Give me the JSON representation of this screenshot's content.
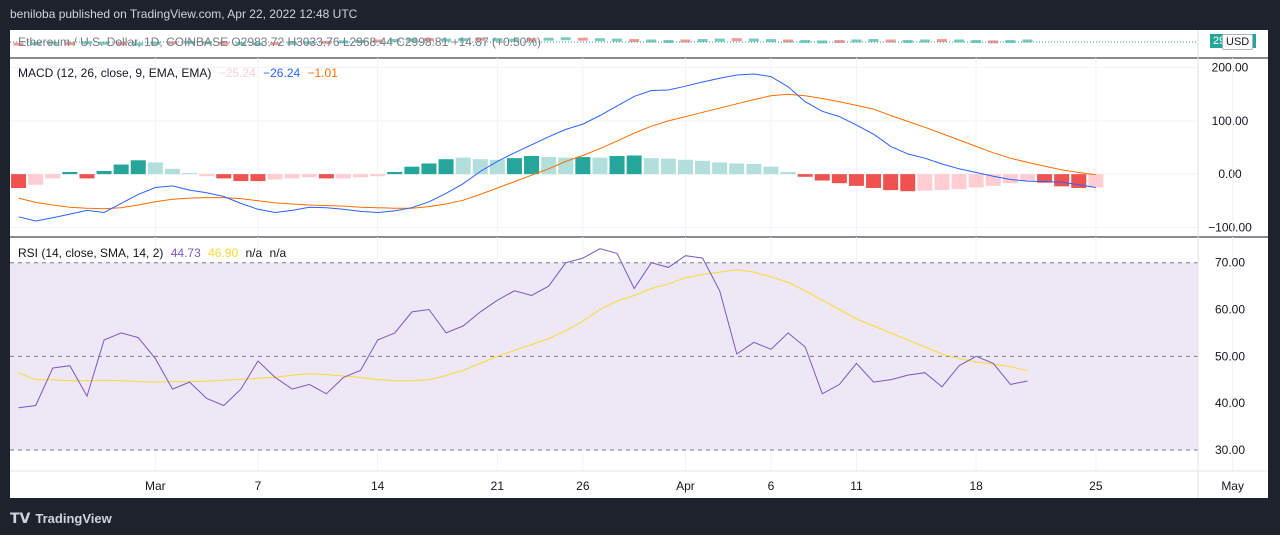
{
  "header": {
    "published": "beniloba published on TradingView.com, Apr 22, 2022 12:48 UTC"
  },
  "footer": {
    "brand": "TradingView"
  },
  "price_pane": {
    "legend": "Ethereum / U.S. Dollar, 1D, COINBASE O2983.72 H3033.76 L2968.44 C2998.81 +14.87 (+0.50%)",
    "price_badge": "2998.81",
    "currency": "USD"
  },
  "colors": {
    "up": "#26a69a",
    "down": "#ef5350",
    "up_light": "#b2dfdb",
    "down_light": "#ffcdd2",
    "macd": "#2962ff",
    "signal": "#ff6d00",
    "rsi": "#7e57c2",
    "rsi_ma": "#fdd835",
    "rsi_band": "#ede7f6"
  },
  "chart_data": [
    {
      "type": "bar",
      "title": "MACD",
      "legend": {
        "label": "MACD (12, 26, close, 9, EMA, EMA)",
        "histogram": "−25.24",
        "macd": "−26.24",
        "signal": "−1.01"
      },
      "y_ticks": [
        "200.00",
        "100.00",
        "0.00",
        "−100.00"
      ],
      "y_tick_values": [
        200,
        100,
        0,
        -100
      ],
      "ylim": [
        -118,
        218
      ],
      "x_start": "2022-02-21",
      "histogram": [
        -26,
        -20,
        -8,
        4,
        -8,
        6,
        18,
        26,
        22,
        10,
        2,
        -4,
        -8,
        -13,
        -13,
        -10,
        -8,
        -6,
        -8,
        -8,
        -6,
        -4,
        4,
        14,
        20,
        28,
        31,
        28,
        27,
        30,
        34,
        32,
        31,
        32,
        31,
        34,
        35,
        30,
        29,
        27,
        25,
        22,
        20,
        19,
        14,
        4,
        -5,
        -12,
        -17,
        -22,
        -26,
        -30,
        -32,
        -31,
        -30,
        -28,
        -25,
        -22,
        -17,
        -12,
        -16,
        -23,
        -26,
        -25
      ],
      "histogram_colors": [
        "down",
        "down_light",
        "down_light",
        "up",
        "down",
        "up",
        "up",
        "up",
        "up_light",
        "up_light",
        "up_light",
        "down_light",
        "down",
        "down",
        "down",
        "down_light",
        "down_light",
        "down_light",
        "down",
        "down_light",
        "down_light",
        "down_light",
        "up",
        "up",
        "up",
        "up",
        "up_light",
        "up_light",
        "up_light",
        "up",
        "up",
        "up_light",
        "up_light",
        "up",
        "up_light",
        "up",
        "up",
        "up_light",
        "up_light",
        "up_light",
        "up_light",
        "up_light",
        "up_light",
        "up_light",
        "up_light",
        "up_light",
        "down",
        "down",
        "down",
        "down",
        "down",
        "down",
        "down",
        "down_light",
        "down_light",
        "down_light",
        "down_light",
        "down_light",
        "down_light",
        "down_light",
        "down",
        "down",
        "down",
        "down_light"
      ],
      "macd": [
        -80,
        -88,
        -82,
        -75,
        -68,
        -72,
        -55,
        -38,
        -25,
        -22,
        -30,
        -35,
        -42,
        -55,
        -66,
        -72,
        -68,
        -62,
        -63,
        -66,
        -70,
        -72,
        -69,
        -63,
        -52,
        -36,
        -18,
        5,
        24,
        40,
        55,
        70,
        84,
        94,
        110,
        128,
        146,
        157,
        158,
        165,
        173,
        180,
        186,
        188,
        183,
        164,
        136,
        118,
        108,
        92,
        75,
        52,
        38,
        30,
        19,
        10,
        3,
        -4,
        -10,
        -13,
        -14,
        -15,
        -20,
        -25
      ],
      "signal": [
        -45,
        -53,
        -58,
        -62,
        -64,
        -65,
        -63,
        -58,
        -52,
        -47,
        -45,
        -44,
        -44,
        -46,
        -50,
        -54,
        -56,
        -58,
        -59,
        -60,
        -62,
        -63,
        -64,
        -64,
        -61,
        -56,
        -49,
        -38,
        -26,
        -14,
        -2,
        10,
        24,
        35,
        48,
        62,
        77,
        90,
        100,
        108,
        116,
        124,
        132,
        140,
        147,
        150,
        147,
        142,
        136,
        129,
        122,
        110,
        99,
        88,
        76,
        64,
        52,
        40,
        30,
        22,
        15,
        8,
        3,
        -1
      ]
    },
    {
      "type": "line",
      "title": "RSI",
      "legend": {
        "label": "RSI (14, close, SMA, 14, 2)",
        "rsi": "44.73",
        "ma": "46.90",
        "bb_upper": "n/a",
        "bb_lower": "n/a"
      },
      "y_ticks": [
        "70.00",
        "60.00",
        "50.00",
        "40.00",
        "30.00"
      ],
      "y_tick_values": [
        70,
        60,
        50,
        40,
        30
      ],
      "ylim": [
        25.5,
        75.5
      ],
      "bands": [
        70,
        50,
        30
      ],
      "rsi": [
        39,
        39.5,
        47.5,
        48,
        41.5,
        53.5,
        55,
        54,
        49.5,
        43,
        44.5,
        41,
        39.5,
        43,
        49,
        45.5,
        43,
        44,
        42,
        45.5,
        47,
        53.5,
        55,
        59.5,
        60,
        55,
        56.5,
        59.5,
        62,
        64,
        63,
        65,
        70,
        71,
        73,
        72,
        64.5,
        70,
        69,
        71.5,
        71,
        64,
        50.5,
        53,
        51.5,
        55,
        52,
        42,
        44,
        48.5,
        44.5,
        45,
        46,
        46.5,
        43.5,
        48,
        50,
        48.5,
        44,
        44.73
      ],
      "ma": [
        46.5,
        45,
        45,
        44.8,
        44.8,
        44.9,
        44.8,
        44.6,
        44.5,
        44.6,
        44.6,
        44.7,
        44.9,
        45.1,
        45.3,
        45.5,
        46,
        46.3,
        46.1,
        45.8,
        45.5,
        45,
        44.8,
        44.8,
        45,
        45.9,
        47,
        48.5,
        50,
        51.3,
        52.5,
        53.8,
        55.5,
        57.5,
        60,
        61.8,
        63,
        64.5,
        65.5,
        66.8,
        67.5,
        68,
        68.5,
        68,
        67,
        65.8,
        64,
        62,
        60,
        58,
        56.5,
        55,
        53.5,
        52,
        50.5,
        49.5,
        48.8,
        48.3,
        47.8,
        46.9
      ]
    }
  ],
  "x_axis": {
    "labels": [
      "Mar",
      "7",
      "14",
      "21",
      "26",
      "Apr",
      "6",
      "11",
      "18",
      "25",
      "May"
    ],
    "label_days": [
      8,
      14,
      21,
      28,
      33,
      39,
      44,
      49,
      56,
      63,
      71
    ]
  }
}
